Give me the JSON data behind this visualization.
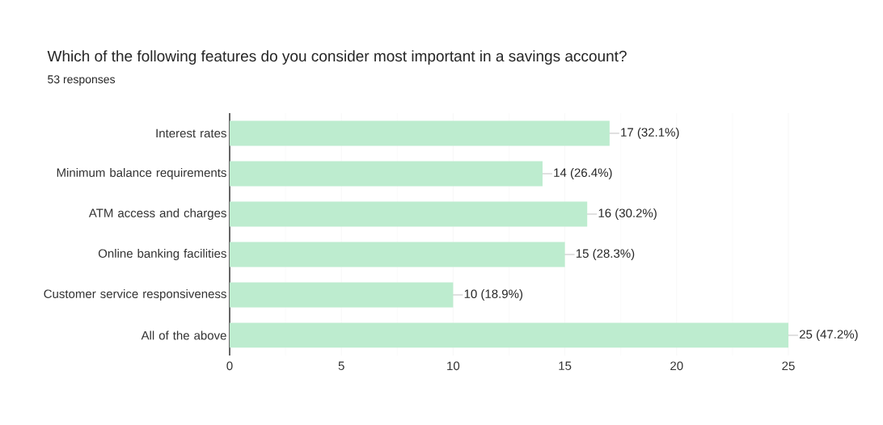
{
  "chart_data": {
    "type": "bar",
    "orientation": "horizontal",
    "title": "Which of the following features do you consider most important in a savings account?",
    "subtitle": "53 responses",
    "categories": [
      "Interest rates",
      "Minimum balance requirements",
      "ATM access and charges",
      "Online banking facilities",
      "Customer service responsiveness",
      "All of the above"
    ],
    "values": [
      17,
      14,
      16,
      15,
      10,
      25
    ],
    "value_labels": [
      "17 (32.1%)",
      "14 (26.4%)",
      "16 (30.2%)",
      "15 (28.3%)",
      "10 (18.9%)",
      "25 (47.2%)"
    ],
    "color": "#bdeccf",
    "xlim": [
      0,
      25
    ],
    "xticks": [
      0,
      5,
      10,
      15,
      20,
      25
    ],
    "grid": "x"
  }
}
